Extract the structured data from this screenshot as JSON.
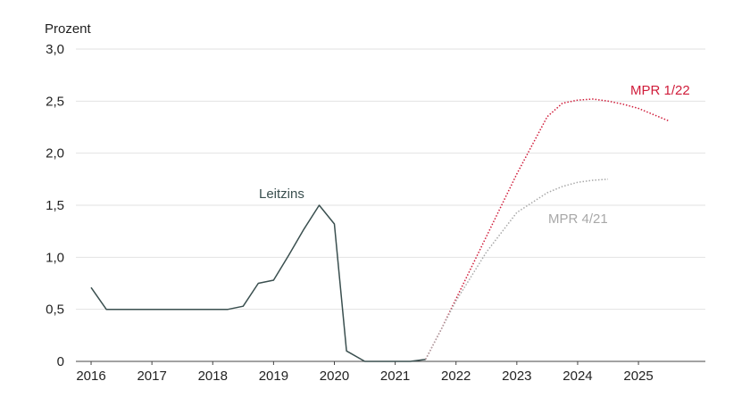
{
  "chart_data": {
    "type": "line",
    "ylabel": "Prozent",
    "ylim": [
      0,
      3.0
    ],
    "y_ticks": [
      "0",
      "0,5",
      "1,0",
      "1,5",
      "2,0",
      "2,5",
      "3,0"
    ],
    "x_ticks": [
      "2016",
      "2017",
      "2018",
      "2019",
      "2020",
      "2021",
      "2022",
      "2023",
      "2024",
      "2025"
    ],
    "xlim": [
      2015.75,
      2026.1
    ],
    "grid": "horizontal",
    "series": [
      {
        "name": "Leitzins",
        "color": "#3a4f4f",
        "style": "solid",
        "points": [
          [
            2016.0,
            0.71
          ],
          [
            2016.25,
            0.5
          ],
          [
            2016.5,
            0.5
          ],
          [
            2017.0,
            0.5
          ],
          [
            2017.5,
            0.5
          ],
          [
            2018.0,
            0.5
          ],
          [
            2018.25,
            0.5
          ],
          [
            2018.5,
            0.53
          ],
          [
            2018.75,
            0.75
          ],
          [
            2019.0,
            0.78
          ],
          [
            2019.25,
            1.02
          ],
          [
            2019.5,
            1.27
          ],
          [
            2019.75,
            1.5
          ],
          [
            2020.0,
            1.32
          ],
          [
            2020.2,
            0.1
          ],
          [
            2020.5,
            0.0
          ],
          [
            2021.0,
            0.0
          ],
          [
            2021.25,
            0.0
          ],
          [
            2021.5,
            0.02
          ]
        ]
      },
      {
        "name": "MPR 1/22",
        "color": "#d01c3a",
        "style": "dotted",
        "points": [
          [
            2021.5,
            0.02
          ],
          [
            2021.75,
            0.3
          ],
          [
            2022.0,
            0.6
          ],
          [
            2022.5,
            1.2
          ],
          [
            2023.0,
            1.8
          ],
          [
            2023.5,
            2.35
          ],
          [
            2023.75,
            2.48
          ],
          [
            2024.0,
            2.51
          ],
          [
            2024.25,
            2.52
          ],
          [
            2024.5,
            2.5
          ],
          [
            2024.75,
            2.47
          ],
          [
            2025.0,
            2.43
          ],
          [
            2025.25,
            2.37
          ],
          [
            2025.5,
            2.31
          ]
        ]
      },
      {
        "name": "MPR 4/21",
        "color": "#a8a8a8",
        "style": "dotted",
        "points": [
          [
            2021.5,
            0.02
          ],
          [
            2021.75,
            0.3
          ],
          [
            2022.0,
            0.58
          ],
          [
            2022.5,
            1.05
          ],
          [
            2023.0,
            1.43
          ],
          [
            2023.5,
            1.62
          ],
          [
            2023.75,
            1.68
          ],
          [
            2024.0,
            1.72
          ],
          [
            2024.25,
            1.74
          ],
          [
            2024.5,
            1.75
          ]
        ]
      }
    ]
  }
}
